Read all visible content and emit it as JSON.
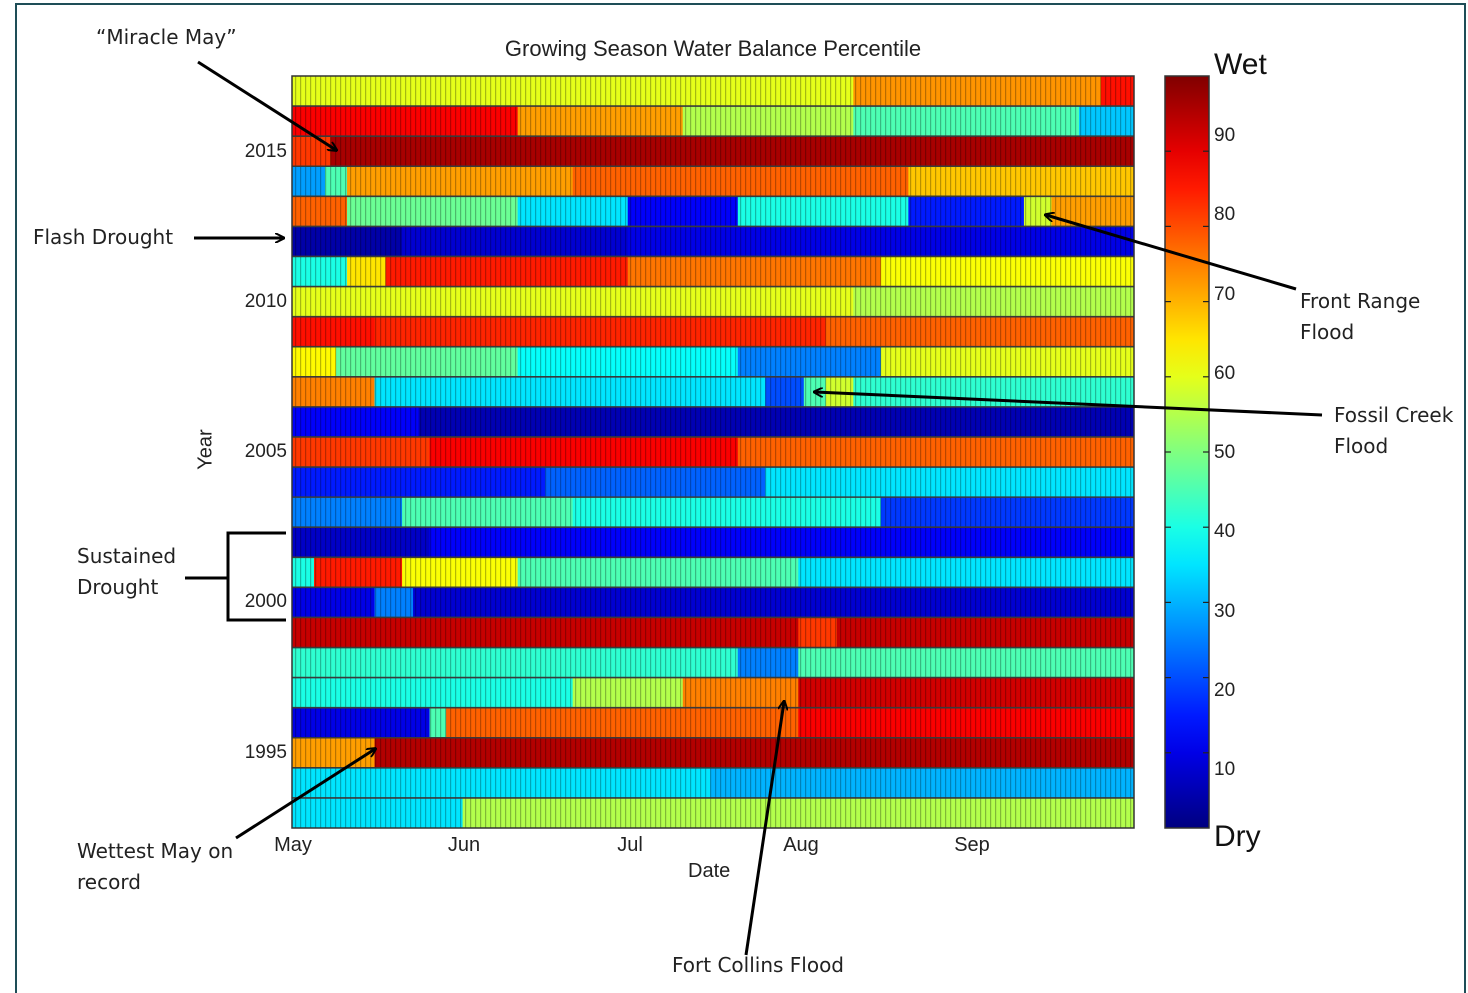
{
  "chart_data": {
    "type": "heatmap",
    "title": "Growing Season Water Balance Percentile",
    "xlabel": "Date",
    "ylabel": "Year",
    "x_tick_labels": [
      "May",
      "Jun",
      "Jul",
      "Aug",
      "Sep"
    ],
    "y_tick_labels": [
      "1995",
      "2000",
      "2005",
      "2010",
      "2015"
    ],
    "colorbar": {
      "ticks": [
        "90",
        "80",
        "70",
        "60",
        "50",
        "40",
        "30",
        "20",
        "10"
      ],
      "top_label": "Wet",
      "bottom_label": "Dry",
      "range": [
        0,
        100
      ],
      "colormap": "jet"
    },
    "years": [
      2017,
      2016,
      2015,
      2014,
      2013,
      2012,
      2011,
      2010,
      2009,
      2008,
      2007,
      2006,
      2005,
      2004,
      2003,
      2002,
      2001,
      2000,
      1999,
      1998,
      1997,
      1996,
      1995,
      1994,
      1993
    ],
    "x_range": [
      "May 1",
      "Sep 30"
    ],
    "rows": [
      {
        "year": 2017,
        "segments": [
          {
            "start": "May 1",
            "end": "Aug 10",
            "value": 60
          },
          {
            "start": "Aug 11",
            "end": "Sep 24",
            "value": 73
          },
          {
            "start": "Sep 25",
            "end": "Sep 30",
            "value": 86
          }
        ]
      },
      {
        "year": 2016,
        "segments": [
          {
            "start": "May 1",
            "end": "Jun 10",
            "value": 88
          },
          {
            "start": "Jun 11",
            "end": "Jul 10",
            "value": 72
          },
          {
            "start": "Jul 11",
            "end": "Aug 10",
            "value": 55
          },
          {
            "start": "Aug 11",
            "end": "Sep 20",
            "value": 45
          },
          {
            "start": "Sep 21",
            "end": "Sep 30",
            "value": 32
          }
        ]
      },
      {
        "year": 2015,
        "segments": [
          {
            "start": "May 1",
            "end": "May 7",
            "value": 82
          },
          {
            "start": "May 8",
            "end": "Sep 30",
            "value": 96
          }
        ]
      },
      {
        "year": 2014,
        "segments": [
          {
            "start": "May 1",
            "end": "May 6",
            "value": 28
          },
          {
            "start": "May 7",
            "end": "May 10",
            "value": 45
          },
          {
            "start": "May 11",
            "end": "Jun 20",
            "value": 72
          },
          {
            "start": "Jun 21",
            "end": "Aug 20",
            "value": 78
          },
          {
            "start": "Aug 21",
            "end": "Sep 30",
            "value": 68
          }
        ]
      },
      {
        "year": 2013,
        "segments": [
          {
            "start": "May 1",
            "end": "May 10",
            "value": 78
          },
          {
            "start": "May 11",
            "end": "Jun 10",
            "value": 48
          },
          {
            "start": "Jun 11",
            "end": "Jun 30",
            "value": 35
          },
          {
            "start": "Jul 1",
            "end": "Jul 20",
            "value": 12
          },
          {
            "start": "Jul 21",
            "end": "Aug 20",
            "value": 40
          },
          {
            "start": "Aug 21",
            "end": "Sep 10",
            "value": 15
          },
          {
            "start": "Sep 11",
            "end": "Sep 15",
            "value": 58
          },
          {
            "start": "Sep 16",
            "end": "Sep 30",
            "value": 72
          }
        ]
      },
      {
        "year": 2012,
        "segments": [
          {
            "start": "May 1",
            "end": "May 20",
            "value": 4
          },
          {
            "start": "May 21",
            "end": "Jun 30",
            "value": 8
          },
          {
            "start": "Jul 1",
            "end": "Sep 30",
            "value": 10
          }
        ]
      },
      {
        "year": 2011,
        "segments": [
          {
            "start": "May 1",
            "end": "May 10",
            "value": 40
          },
          {
            "start": "May 11",
            "end": "May 17",
            "value": 65
          },
          {
            "start": "May 18",
            "end": "Jun 30",
            "value": 85
          },
          {
            "start": "Jul 1",
            "end": "Aug 15",
            "value": 76
          },
          {
            "start": "Aug 16",
            "end": "Sep 30",
            "value": 62
          }
        ]
      },
      {
        "year": 2010,
        "segments": [
          {
            "start": "May 1",
            "end": "Aug 10",
            "value": 60
          },
          {
            "start": "Aug 11",
            "end": "Sep 30",
            "value": 55
          }
        ]
      },
      {
        "year": 2009,
        "segments": [
          {
            "start": "May 1",
            "end": "May 15",
            "value": 86
          },
          {
            "start": "May 16",
            "end": "Aug 5",
            "value": 84
          },
          {
            "start": "Aug 6",
            "end": "Sep 30",
            "value": 78
          }
        ]
      },
      {
        "year": 2008,
        "segments": [
          {
            "start": "May 1",
            "end": "May 8",
            "value": 63
          },
          {
            "start": "May 9",
            "end": "Jun 10",
            "value": 47
          },
          {
            "start": "Jun 11",
            "end": "Jul 20",
            "value": 38
          },
          {
            "start": "Jul 21",
            "end": "Aug 15",
            "value": 25
          },
          {
            "start": "Aug 16",
            "end": "Sep 30",
            "value": 60
          }
        ]
      },
      {
        "year": 2007,
        "segments": [
          {
            "start": "May 1",
            "end": "May 15",
            "value": 75
          },
          {
            "start": "May 16",
            "end": "Jul 25",
            "value": 35
          },
          {
            "start": "Jul 26",
            "end": "Aug 1",
            "value": 20
          },
          {
            "start": "Aug 2",
            "end": "Aug 5",
            "value": 45
          },
          {
            "start": "Aug 6",
            "end": "Aug 10",
            "value": 58
          },
          {
            "start": "Aug 11",
            "end": "Sep 30",
            "value": 42
          }
        ]
      },
      {
        "year": 2006,
        "segments": [
          {
            "start": "May 1",
            "end": "May 23",
            "value": 12
          },
          {
            "start": "May 24",
            "end": "Sep 30",
            "value": 5
          }
        ]
      },
      {
        "year": 2005,
        "segments": [
          {
            "start": "May 1",
            "end": "May 25",
            "value": 82
          },
          {
            "start": "May 26",
            "end": "Jul 20",
            "value": 88
          },
          {
            "start": "Jul 21",
            "end": "Sep 30",
            "value": 78
          }
        ]
      },
      {
        "year": 2004,
        "segments": [
          {
            "start": "May 1",
            "end": "Jun 15",
            "value": 15
          },
          {
            "start": "Jun 16",
            "end": "Jul 25",
            "value": 22
          },
          {
            "start": "Jul 26",
            "end": "Sep 30",
            "value": 35
          }
        ]
      },
      {
        "year": 2003,
        "segments": [
          {
            "start": "May 1",
            "end": "May 20",
            "value": 25
          },
          {
            "start": "May 21",
            "end": "Jun 20",
            "value": 45
          },
          {
            "start": "Jun 21",
            "end": "Aug 15",
            "value": 40
          },
          {
            "start": "Aug 16",
            "end": "Sep 30",
            "value": 18
          }
        ]
      },
      {
        "year": 2002,
        "segments": [
          {
            "start": "May 1",
            "end": "May 25",
            "value": 7
          },
          {
            "start": "May 26",
            "end": "Sep 30",
            "value": 12
          }
        ]
      },
      {
        "year": 2001,
        "segments": [
          {
            "start": "May 1",
            "end": "May 4",
            "value": 40
          },
          {
            "start": "May 5",
            "end": "May 20",
            "value": 85
          },
          {
            "start": "May 21",
            "end": "Jun 10",
            "value": 62
          },
          {
            "start": "Jun 11",
            "end": "Jul 31",
            "value": 45
          },
          {
            "start": "Aug 1",
            "end": "Sep 30",
            "value": 35
          }
        ]
      },
      {
        "year": 2000,
        "segments": [
          {
            "start": "May 1",
            "end": "May 15",
            "value": 10
          },
          {
            "start": "May 16",
            "end": "May 22",
            "value": 25
          },
          {
            "start": "May 23",
            "end": "Sep 30",
            "value": 8
          }
        ]
      },
      {
        "year": 1999,
        "segments": [
          {
            "start": "May 1",
            "end": "Jul 31",
            "value": 93
          },
          {
            "start": "Aug 1",
            "end": "Aug 7",
            "value": 82
          },
          {
            "start": "Aug 8",
            "end": "Sep 30",
            "value": 93
          }
        ]
      },
      {
        "year": 1998,
        "segments": [
          {
            "start": "May 1",
            "end": "Jul 20",
            "value": 42
          },
          {
            "start": "Jul 21",
            "end": "Jul 31",
            "value": 25
          },
          {
            "start": "Aug 1",
            "end": "Sep 30",
            "value": 45
          }
        ]
      },
      {
        "year": 1997,
        "segments": [
          {
            "start": "May 1",
            "end": "Jun 20",
            "value": 40
          },
          {
            "start": "Jun 21",
            "end": "Jul 10",
            "value": 55
          },
          {
            "start": "Jul 11",
            "end": "Jul 31",
            "value": 75
          },
          {
            "start": "Aug 1",
            "end": "Sep 30",
            "value": 92
          }
        ]
      },
      {
        "year": 1996,
        "segments": [
          {
            "start": "May 1",
            "end": "May 25",
            "value": 10
          },
          {
            "start": "May 26",
            "end": "May 28",
            "value": 45
          },
          {
            "start": "May 29",
            "end": "Jul 31",
            "value": 78
          },
          {
            "start": "Aug 1",
            "end": "Sep 30",
            "value": 88
          }
        ]
      },
      {
        "year": 1995,
        "segments": [
          {
            "start": "May 1",
            "end": "May 15",
            "value": 72
          },
          {
            "start": "May 16",
            "end": "Sep 30",
            "value": 95
          }
        ]
      },
      {
        "year": 1994,
        "segments": [
          {
            "start": "May 1",
            "end": "Jul 15",
            "value": 35
          },
          {
            "start": "Jul 16",
            "end": "Sep 30",
            "value": 30
          }
        ]
      },
      {
        "year": 1993,
        "segments": [
          {
            "start": "May 1",
            "end": "May 31",
            "value": 35
          },
          {
            "start": "Jun 1",
            "end": "Sep 30",
            "value": 55
          }
        ]
      }
    ],
    "annotations": [
      {
        "text": "“Miracle May”",
        "target": "2015, early May"
      },
      {
        "text": "Flash Drought",
        "target": "2012"
      },
      {
        "text": "Front Range Flood",
        "target": "2013, mid-September"
      },
      {
        "text": "Fossil Creek Flood",
        "target": "2007, early August"
      },
      {
        "text": "Sustained Drought",
        "target": "2000–2002"
      },
      {
        "text": "Wettest May on record",
        "target": "1995, mid-May"
      },
      {
        "text": "Fort Collins Flood",
        "target": "1997, late July"
      }
    ]
  }
}
